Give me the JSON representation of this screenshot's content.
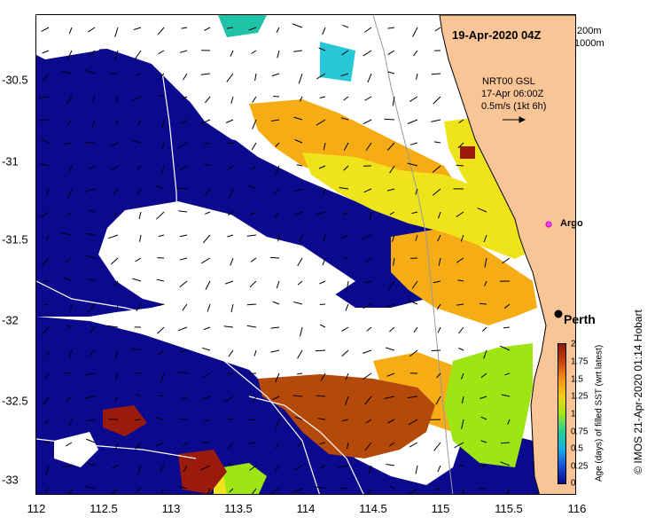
{
  "map": {
    "date_label": "19-Apr-2020 04Z",
    "depth_contours": [
      "200m",
      "1000m"
    ],
    "current_source": [
      "NRT00 GSL",
      "17-Apr 06:00Z",
      "0.5m/s (1kt 6h)"
    ],
    "x_ticks": [
      "112",
      "112.5",
      "113",
      "113.5",
      "114",
      "114.5",
      "115",
      "115.5",
      "116"
    ],
    "y_ticks": [
      "-30.5",
      "-31",
      "-31.5",
      "-32",
      "-32.5",
      "-33"
    ],
    "places": [
      {
        "name": "Argo",
        "lon": 115.85,
        "lat": -31.45,
        "marker": "magenta-star"
      },
      {
        "name": "Perth",
        "lon": 115.86,
        "lat": -31.95,
        "marker": "black-dot"
      }
    ],
    "colors": {
      "land": "#f9c596",
      "no_data": "#ffffff",
      "age_0": "#0a0a8c",
      "age_1": "#f5ad12",
      "age_1_25": "#f0e41c",
      "age_2": "#9b1a0a",
      "age_1_75": "#b44a08"
    }
  },
  "colorbar": {
    "title": "Age (days) of filled SST (wrt latest)",
    "ticks": [
      "2",
      "1.75",
      "1.5",
      "1.25",
      "1",
      "0.75",
      "0.5",
      "0.25",
      "0"
    ]
  },
  "credit": "© IMOS 21-Apr-2020 01:14 Hobart"
}
